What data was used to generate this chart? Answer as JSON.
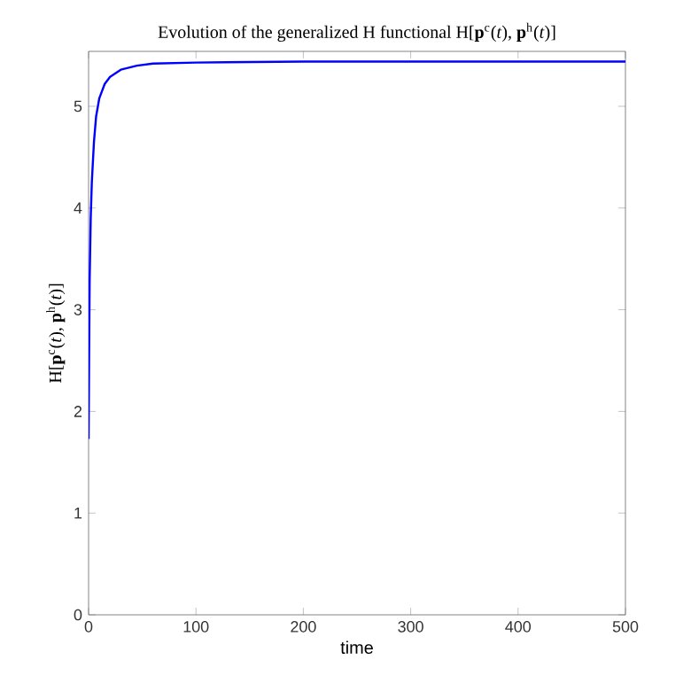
{
  "chart_data": {
    "type": "line",
    "title": "Evolution of the generalized H functional H[**p**$^{c}$(*t*), **p**$^{h}$(*t*)]",
    "xlabel": "time",
    "ylabel": "H[**p**$^{c}$(*t*), **p**$^{h}$(*t*)]",
    "x": [
      0,
      0.5,
      1,
      2,
      3,
      5,
      7,
      10,
      15,
      20,
      30,
      45,
      60,
      100,
      200,
      300,
      400,
      500
    ],
    "series": [
      {
        "color": "#0000ff",
        "values": [
          1.73,
          2.6,
          3.3,
          3.9,
          4.25,
          4.65,
          4.9,
          5.08,
          5.22,
          5.29,
          5.36,
          5.4,
          5.42,
          5.43,
          5.44,
          5.44,
          5.44,
          5.44
        ]
      }
    ],
    "xlim": [
      0,
      500
    ],
    "ylim": [
      0,
      5.54
    ],
    "xticks": [
      0,
      100,
      200,
      300,
      400,
      500
    ],
    "yticks": [
      0,
      1,
      2,
      3,
      4,
      5
    ]
  }
}
